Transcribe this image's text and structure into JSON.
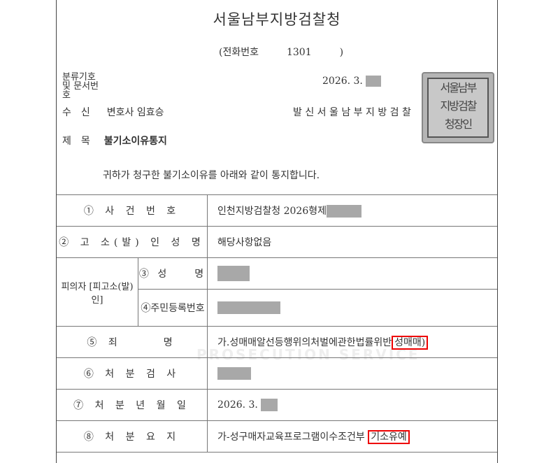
{
  "header": {
    "title": "서울남부지방검찰청",
    "phone_label": "(전화번호",
    "phone_number": "1301",
    "phone_close": ")"
  },
  "meta": {
    "doc_no_label": "분류기호 및 문서번호",
    "date": "2026. 3.",
    "recipient_label": "수　신",
    "recipient": "변호사 임효승",
    "sender_label": "발 신",
    "sender": "서 울 남 부 지 방 검 찰",
    "subject_label": "제　목",
    "subject": "불기소이유통지"
  },
  "seal": {
    "text": "서울남부지방검찰청장인"
  },
  "intro": "귀하가 청구한 불기소이유를 아래와 같이 통지합니다.",
  "watermark": "PROSECUTION SERVICE",
  "rows": [
    {
      "label": "① 사 건 번 호",
      "value": "인천지방검찰청 2026형제"
    },
    {
      "label": "② 고 소(발) 인 성 명",
      "value": "해당사항없음"
    },
    {
      "group": "피의자 [피고소(발)인]",
      "label": "③ 성　　명",
      "value": ""
    },
    {
      "label": "④주민등록번호",
      "value": ""
    },
    {
      "label": "⑤ 죄　　　명",
      "value": "가.성매매알선등행위의처벌에관한법률위반",
      "highlight": "성매매)"
    },
    {
      "label": "⑥ 처 분 검 사",
      "value": ""
    },
    {
      "label": "⑦ 처 분 년 월 일",
      "value": "2026. 3."
    },
    {
      "label": "⑧ 처 분 요 지",
      "value": "가-성구매자교육프로그램이수조건부",
      "highlight": "기소유예"
    }
  ],
  "colors": {
    "highlight": "#e00000",
    "redaction": "#a8a8a8"
  }
}
